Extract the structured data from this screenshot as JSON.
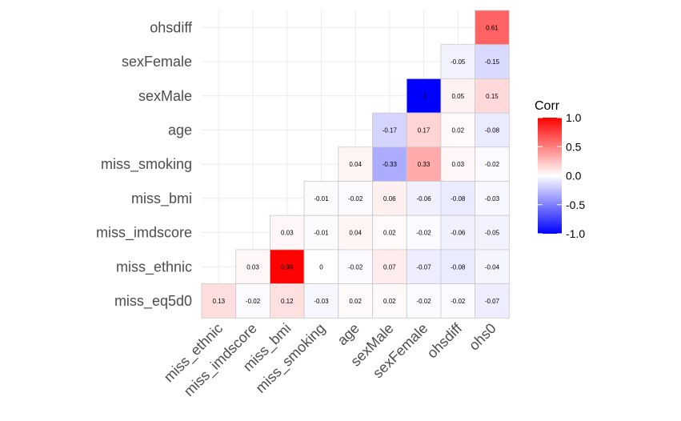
{
  "chart_data": {
    "type": "heatmap",
    "title": "",
    "rows": [
      "ohsdiff",
      "sexFemale",
      "sexMale",
      "age",
      "miss_smoking",
      "miss_bmi",
      "miss_imdscore",
      "miss_ethnic",
      "miss_eq5d0"
    ],
    "columns": [
      "miss_ethnic",
      "miss_imdscore",
      "miss_bmi",
      "miss_smoking",
      "age",
      "sexMale",
      "sexFemale",
      "ohsdiff",
      "ohs0"
    ],
    "values": [
      [
        null,
        null,
        null,
        null,
        null,
        null,
        null,
        null,
        0.61
      ],
      [
        null,
        null,
        null,
        null,
        null,
        null,
        null,
        -0.05,
        -0.15
      ],
      [
        null,
        null,
        null,
        null,
        null,
        null,
        -1,
        0.05,
        0.15
      ],
      [
        null,
        null,
        null,
        null,
        null,
        -0.17,
        0.17,
        0.02,
        -0.08
      ],
      [
        null,
        null,
        null,
        null,
        0.04,
        -0.33,
        0.33,
        0.03,
        -0.02
      ],
      [
        null,
        null,
        null,
        -0.01,
        -0.02,
        0.06,
        -0.06,
        -0.08,
        -0.03
      ],
      [
        null,
        null,
        0.03,
        -0.01,
        0.04,
        0.02,
        -0.02,
        -0.06,
        -0.05
      ],
      [
        null,
        0.03,
        0.99,
        0,
        -0.02,
        0.07,
        -0.07,
        -0.08,
        -0.04
      ],
      [
        0.13,
        -0.02,
        0.12,
        -0.03,
        0.02,
        0.02,
        -0.02,
        -0.02,
        -0.07
      ]
    ],
    "labels": [
      [
        null,
        null,
        null,
        null,
        null,
        null,
        null,
        null,
        "0.61"
      ],
      [
        null,
        null,
        null,
        null,
        null,
        null,
        null,
        "-0.05",
        "-0.15"
      ],
      [
        null,
        null,
        null,
        null,
        null,
        null,
        "-1",
        "0.05",
        "0.15"
      ],
      [
        null,
        null,
        null,
        null,
        null,
        "-0.17",
        "0.17",
        "0.02",
        "-0.08"
      ],
      [
        null,
        null,
        null,
        null,
        "0.04",
        "-0.33",
        "0.33",
        "0.03",
        "-0.02"
      ],
      [
        null,
        null,
        null,
        "-0.01",
        "-0.02",
        "0.06",
        "-0.06",
        "-0.08",
        "-0.03"
      ],
      [
        null,
        null,
        "0.03",
        "-0.01",
        "0.04",
        "0.02",
        "-0.02",
        "-0.06",
        "-0.05"
      ],
      [
        null,
        "0.03",
        "0.99",
        "0",
        "-0.02",
        "0.07",
        "-0.07",
        "-0.08",
        "-0.04"
      ],
      [
        "0.13",
        "-0.02",
        "0.12",
        "-0.03",
        "0.02",
        "0.02",
        "-0.02",
        "-0.02",
        "-0.07"
      ]
    ],
    "legend": {
      "title": "Corr",
      "ticks": [
        "1.0",
        "0.5",
        "0.0",
        "-0.5",
        "-1.0"
      ],
      "tick_values": [
        1.0,
        0.5,
        0.0,
        -0.5,
        -1.0
      ],
      "range": [
        -1,
        1
      ],
      "placement": "right"
    },
    "colors": {
      "low": "#0000FF",
      "mid": "#FFFFFF",
      "high": "#FF0000",
      "grid": "#EBEBEB",
      "border": "#C8C8C8"
    }
  }
}
